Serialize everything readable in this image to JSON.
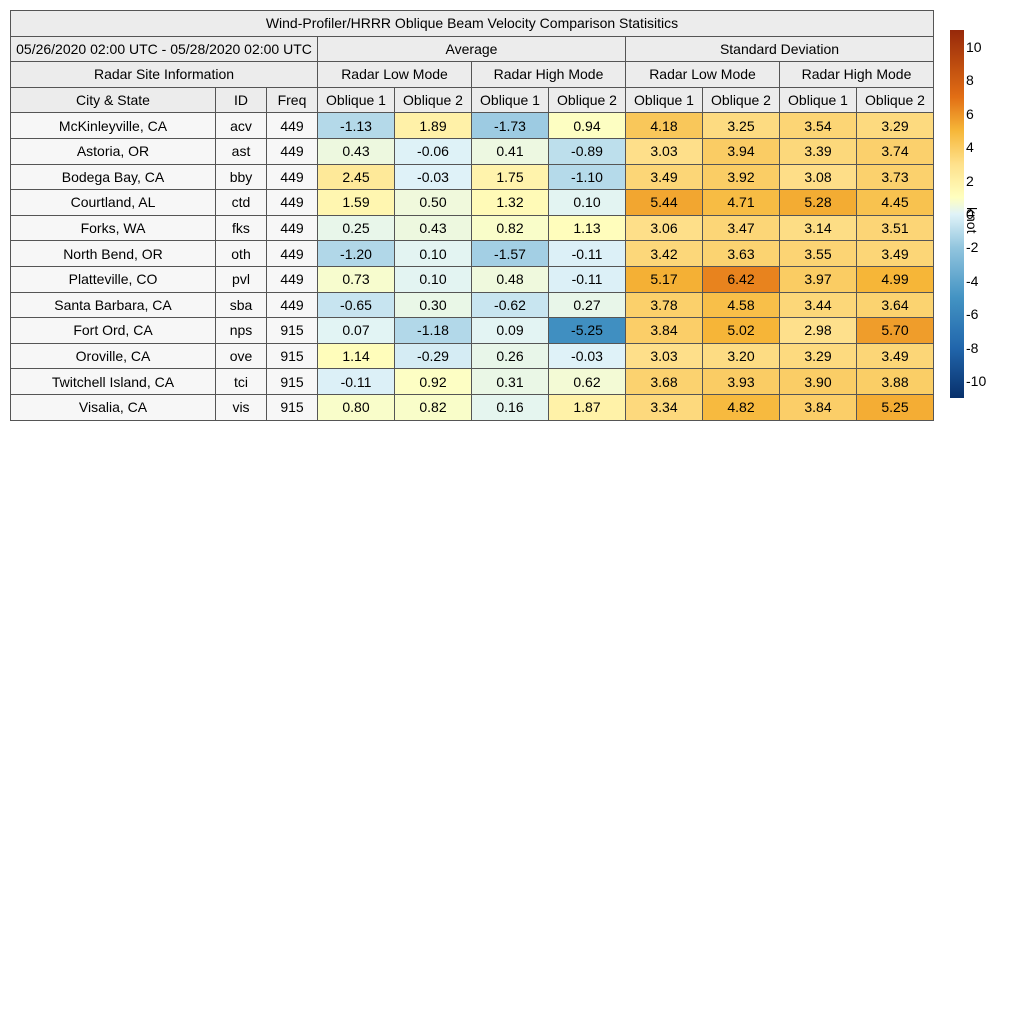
{
  "title": "Wind-Profiler/HRRR Oblique Beam Velocity Comparison Statisitics",
  "period": "05/26/2020 02:00 UTC - 05/28/2020 02:00 UTC",
  "groups": {
    "average": "Average",
    "std": "Standard Deviation"
  },
  "site_info_label": "Radar Site Information",
  "modes": {
    "low": "Radar Low Mode",
    "high": "Radar High Mode"
  },
  "columns": {
    "city": "City & State",
    "id": "ID",
    "freq": "Freq",
    "ob1": "Oblique 1",
    "ob2": "Oblique 2"
  },
  "colorbar": {
    "unit": "knot",
    "min": -11,
    "max": 11,
    "ticks": [
      "10",
      "8",
      "6",
      "4",
      "2",
      "0",
      "-2",
      "-4",
      "-6",
      "-8",
      "-10"
    ]
  },
  "chart_data": {
    "type": "table",
    "title": "Wind-Profiler/HRRR Oblique Beam Velocity Comparison Statisitics",
    "value_columns": [
      "Average Radar Low Mode Oblique 1",
      "Average Radar Low Mode Oblique 2",
      "Average Radar High Mode Oblique 1",
      "Average Radar High Mode Oblique 2",
      "Standard Deviation Radar Low Mode Oblique 1",
      "Standard Deviation Radar Low Mode Oblique 2",
      "Standard Deviation Radar High Mode Oblique 1",
      "Standard Deviation Radar High Mode Oblique 2"
    ],
    "rows": [
      {
        "city": "McKinleyville, CA",
        "id": "acv",
        "freq": "449",
        "values": [
          "-1.13",
          "1.89",
          "-1.73",
          "0.94",
          "4.18",
          "3.25",
          "3.54",
          "3.29"
        ]
      },
      {
        "city": "Astoria, OR",
        "id": "ast",
        "freq": "449",
        "values": [
          "0.43",
          "-0.06",
          "0.41",
          "-0.89",
          "3.03",
          "3.94",
          "3.39",
          "3.74"
        ]
      },
      {
        "city": "Bodega Bay, CA",
        "id": "bby",
        "freq": "449",
        "values": [
          "2.45",
          "-0.03",
          "1.75",
          "-1.10",
          "3.49",
          "3.92",
          "3.08",
          "3.73"
        ]
      },
      {
        "city": "Courtland, AL",
        "id": "ctd",
        "freq": "449",
        "values": [
          "1.59",
          "0.50",
          "1.32",
          "0.10",
          "5.44",
          "4.71",
          "5.28",
          "4.45"
        ]
      },
      {
        "city": "Forks, WA",
        "id": "fks",
        "freq": "449",
        "values": [
          "0.25",
          "0.43",
          "0.82",
          "1.13",
          "3.06",
          "3.47",
          "3.14",
          "3.51"
        ]
      },
      {
        "city": "North Bend, OR",
        "id": "oth",
        "freq": "449",
        "values": [
          "-1.20",
          "0.10",
          "-1.57",
          "-0.11",
          "3.42",
          "3.63",
          "3.55",
          "3.49"
        ]
      },
      {
        "city": "Platteville, CO",
        "id": "pvl",
        "freq": "449",
        "values": [
          "0.73",
          "0.10",
          "0.48",
          "-0.11",
          "5.17",
          "6.42",
          "3.97",
          "4.99"
        ]
      },
      {
        "city": "Santa Barbara, CA",
        "id": "sba",
        "freq": "449",
        "values": [
          "-0.65",
          "0.30",
          "-0.62",
          "0.27",
          "3.78",
          "4.58",
          "3.44",
          "3.64"
        ]
      },
      {
        "city": "Fort Ord, CA",
        "id": "nps",
        "freq": "915",
        "values": [
          "0.07",
          "-1.18",
          "0.09",
          "-5.25",
          "3.84",
          "5.02",
          "2.98",
          "5.70"
        ]
      },
      {
        "city": "Oroville, CA",
        "id": "ove",
        "freq": "915",
        "values": [
          "1.14",
          "-0.29",
          "0.26",
          "-0.03",
          "3.03",
          "3.20",
          "3.29",
          "3.49"
        ]
      },
      {
        "city": "Twitchell Island, CA",
        "id": "tci",
        "freq": "915",
        "values": [
          "-0.11",
          "0.92",
          "0.31",
          "0.62",
          "3.68",
          "3.93",
          "3.90",
          "3.88"
        ]
      },
      {
        "city": "Visalia, CA",
        "id": "vis",
        "freq": "915",
        "values": [
          "0.80",
          "0.82",
          "0.16",
          "1.87",
          "3.34",
          "4.82",
          "3.84",
          "5.25"
        ]
      }
    ]
  }
}
